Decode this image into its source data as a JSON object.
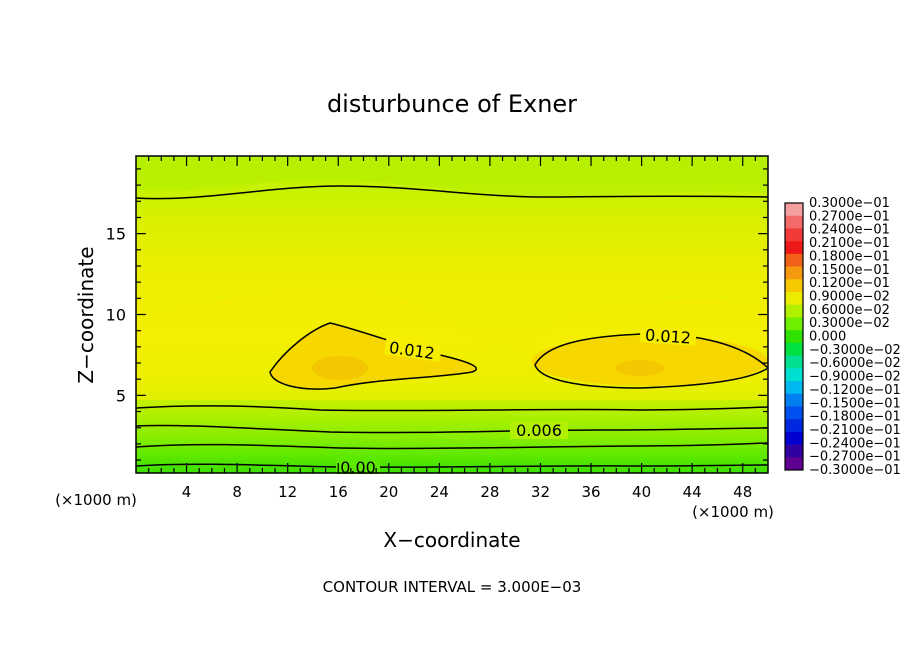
{
  "chart_data": {
    "type": "contour",
    "title": "disturbunce of Exner",
    "xlabel": "X−coordinate",
    "ylabel": "Z−coordinate",
    "x_unit": "(×1000 m)",
    "x_unit_right": "(×1000 m)",
    "xlim": [
      0,
      50
    ],
    "ylim": [
      0.2,
      19.8
    ],
    "x_ticks": [
      "4",
      "8",
      "12",
      "16",
      "20",
      "24",
      "28",
      "32",
      "36",
      "40",
      "44",
      "48"
    ],
    "y_ticks": [
      "5",
      "10",
      "15"
    ],
    "contour_interval_text": "CONTOUR INTERVAL = 3.000E−03",
    "contour_labels": [
      "0.012",
      "0.012",
      "0.006",
      "0.00"
    ],
    "colorbar": {
      "levels": [
        "0.3000e−01",
        "0.2700e−01",
        "0.2400e−01",
        "0.2100e−01",
        "0.1800e−01",
        "0.1500e−01",
        "0.1200e−01",
        "0.9000e−02",
        "0.6000e−02",
        "0.3000e−02",
        "0.000",
        "−0.3000e−02",
        "−0.6000e−02",
        "−0.9000e−02",
        "−0.1200e−01",
        "−0.1500e−01",
        "−0.1800e−01",
        "−0.2100e−01",
        "−0.2400e−01",
        "−0.2700e−01",
        "−0.3000e−01"
      ],
      "colors": [
        "#f5a0a0",
        "#f46a6a",
        "#f23a3a",
        "#ee1818",
        "#f06018",
        "#f59a10",
        "#f5c800",
        "#ecec00",
        "#b0f000",
        "#70ee00",
        "#30e000",
        "#00e040",
        "#00e090",
        "#00e0d0",
        "#00b8f0",
        "#0080f0",
        "#0050f0",
        "#0028e0",
        "#0000d0",
        "#3000a0",
        "#600090"
      ]
    }
  }
}
